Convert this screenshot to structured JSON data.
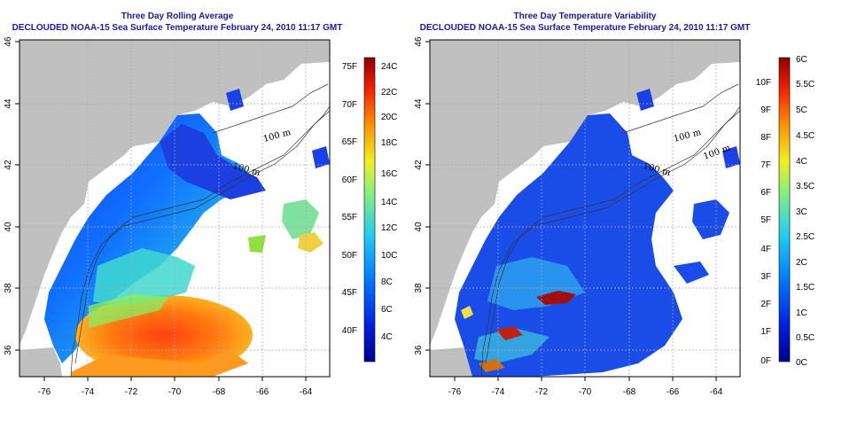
{
  "left_panel": {
    "title_line1": "Three Day Rolling Average",
    "title_line2": "DECLOUDED NOAA-15 Sea Surface Temperature February 24, 2010 11:17 GMT",
    "colorbar_fahrenheit": [
      "75F",
      "70F",
      "65F",
      "60F",
      "55F",
      "50F",
      "45F",
      "40F"
    ],
    "colorbar_celsius": [
      "24C",
      "22C",
      "20C",
      "18C",
      "16C",
      "14C",
      "12C",
      "10C",
      "8C",
      "6C",
      "4C"
    ],
    "contour_labels": [
      "100 m",
      "100 m"
    ]
  },
  "right_panel": {
    "title_line1": "Three Day Temperature Variability",
    "title_line2": "DECLOUDED NOAA-15 Sea Surface Temperature February 24, 2010 11:17 GMT",
    "colorbar_fahrenheit": [
      "10F",
      "9F",
      "8F",
      "7F",
      "6F",
      "5F",
      "4F",
      "3F",
      "2F",
      "1F",
      "0F"
    ],
    "colorbar_celsius": [
      "6C",
      "5.5C",
      "5C",
      "4.5C",
      "4C",
      "3.5C",
      "3C",
      "2.5C",
      "2C",
      "1.5C",
      "1C",
      "0.5C",
      "0C"
    ],
    "contour_labels": [
      "100 m",
      "100 m",
      "100 m"
    ]
  },
  "axes": {
    "x_ticks": [
      "-76",
      "-74",
      "-72",
      "-70",
      "-68",
      "-66",
      "-64"
    ],
    "y_ticks": [
      "46",
      "44",
      "42",
      "40",
      "38",
      "36"
    ]
  },
  "colors": {
    "land": "#c0c0c0",
    "title": "#1a1aa0"
  }
}
